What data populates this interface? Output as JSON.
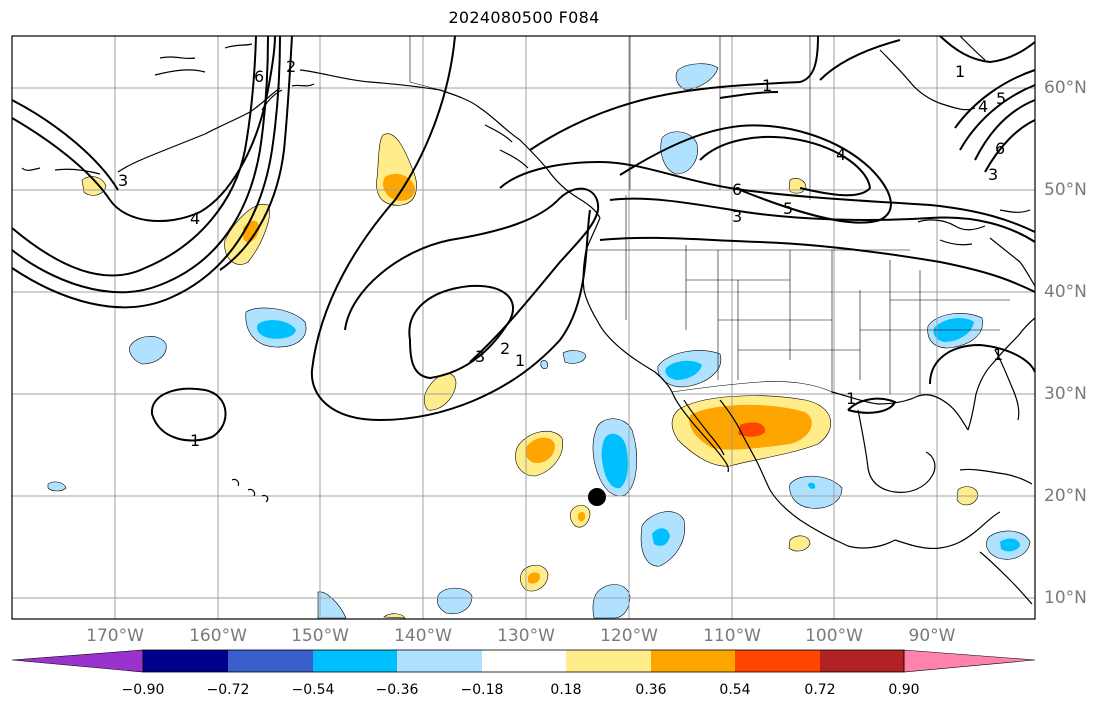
{
  "title": "2024080500 F084",
  "lon_labels": [
    {
      "text": "170°W"
    },
    {
      "text": "160°W"
    },
    {
      "text": "150°W"
    },
    {
      "text": "140°W"
    },
    {
      "text": "130°W"
    },
    {
      "text": "120°W"
    },
    {
      "text": "110°W"
    },
    {
      "text": "100°W"
    },
    {
      "text": "90°W"
    }
  ],
  "lat_labels": [
    {
      "text": "60°N"
    },
    {
      "text": "50°N"
    },
    {
      "text": "40°N"
    },
    {
      "text": "30°N"
    },
    {
      "text": "20°N"
    },
    {
      "text": "10°N"
    }
  ],
  "colorbar": {
    "ticks": [
      "−0.90",
      "−0.72",
      "−0.54",
      "−0.36",
      "−0.18",
      "0.18",
      "0.36",
      "0.54",
      "0.72",
      "0.90"
    ],
    "colors": [
      "#9a32cd",
      "#00008b",
      "#3a5fcd",
      "#00bfff",
      "#b0e2ff",
      "#ffffff",
      "#ffec8b",
      "#ffa500",
      "#ff4500",
      "#b22222",
      "#ff82ab"
    ]
  },
  "contour_labels": [
    "1",
    "2",
    "3",
    "4",
    "5",
    "6"
  ],
  "colors": {
    "land_outline": "#000000",
    "grid": "#a0a0a0",
    "contour": "#000000",
    "marker": "#000000"
  }
}
